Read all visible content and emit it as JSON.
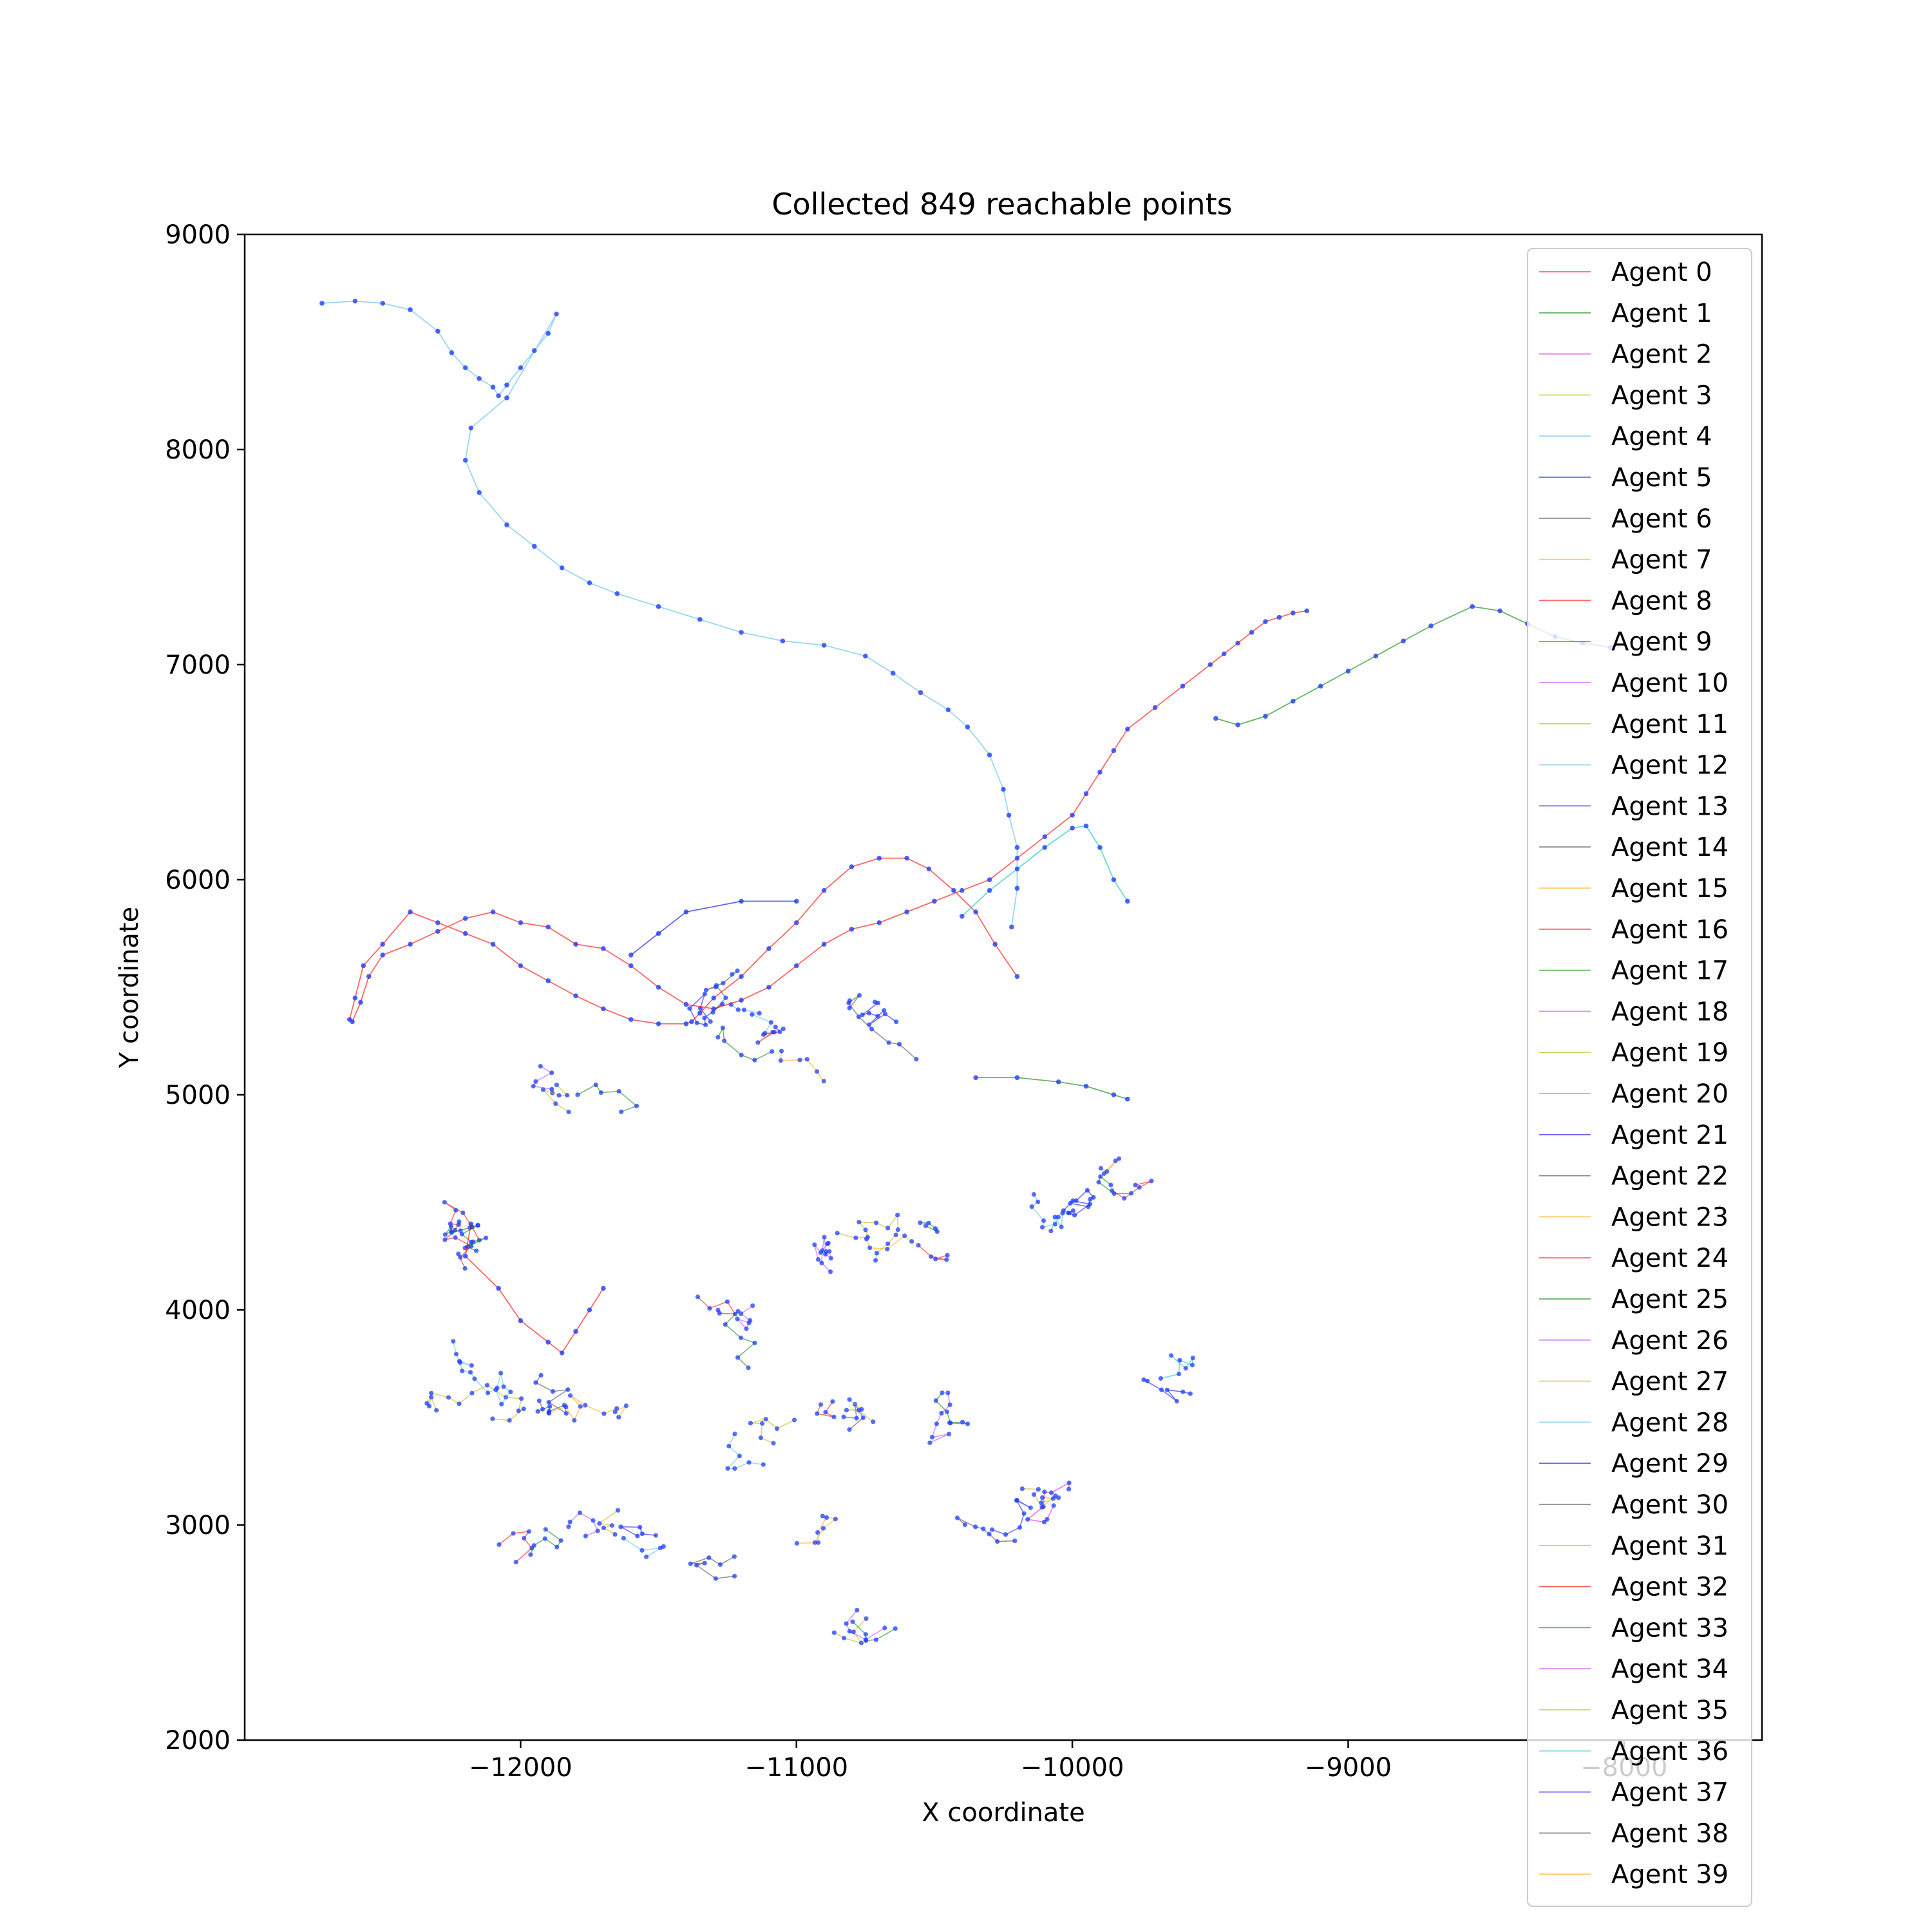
{
  "chart_data": {
    "type": "line",
    "title": "Collected 849 reachable points",
    "xlabel": "X coordinate",
    "ylabel": "Y coordinate",
    "xlim": [
      -13000,
      -7500
    ],
    "ylim": [
      2000,
      9000
    ],
    "xticks": [
      -12000,
      -11000,
      -10000,
      -9000,
      -8000
    ],
    "xtick_labels": [
      "−12000",
      "−11000",
      "−10000",
      "−9000",
      "−8000"
    ],
    "yticks": [
      2000,
      3000,
      4000,
      5000,
      6000,
      7000,
      8000,
      9000
    ],
    "ytick_labels": [
      "2000",
      "3000",
      "4000",
      "5000",
      "6000",
      "7000",
      "8000",
      "9000"
    ],
    "grid": false,
    "legend_position": "right",
    "point_color": "#1f3fff",
    "series": [
      {
        "name": "Agent 0",
        "color": "#ff0000",
        "x": [],
        "y": []
      },
      {
        "name": "Agent 1",
        "color": "#008000",
        "x": [],
        "y": []
      },
      {
        "name": "Agent 2",
        "color": "#e000e0",
        "x": [],
        "y": []
      },
      {
        "name": "Agent 3",
        "color": "#b5b500",
        "x": [],
        "y": []
      },
      {
        "name": "Agent 4",
        "color": "#55bbee",
        "x": [
          -12720,
          -12600,
          -12500,
          -12400,
          -12300,
          -12250,
          -12200,
          -12150,
          -12100,
          -12080,
          -12050,
          -12000,
          -11950,
          -11900,
          -11870,
          -12050,
          -12180,
          -12200,
          -12150,
          -12050,
          -11950,
          -11850,
          -11750,
          -11650,
          -11500,
          -11350,
          -11200,
          -11050,
          -10900,
          -10750,
          -10650,
          -10550,
          -10450,
          -10380,
          -10300,
          -10250,
          -10230,
          -10200,
          -10200,
          -10220
        ],
        "y": [
          8680,
          8690,
          8680,
          8650,
          8550,
          8450,
          8380,
          8330,
          8290,
          8250,
          8300,
          8380,
          8460,
          8540,
          8630,
          8240,
          8100,
          7950,
          7800,
          7650,
          7550,
          7450,
          7380,
          7330,
          7270,
          7210,
          7150,
          7110,
          7090,
          7040,
          6960,
          6870,
          6790,
          6710,
          6580,
          6420,
          6300,
          6150,
          5960,
          5780
        ]
      },
      {
        "name": "Agent 5",
        "color": "#0000ff",
        "x": [
          -11000,
          -11200,
          -11400,
          -11500,
          -11600
        ],
        "y": [
          5900,
          5900,
          5850,
          5750,
          5650
        ]
      },
      {
        "name": "Agent 6",
        "color": "#404040",
        "x": [],
        "y": []
      },
      {
        "name": "Agent 7",
        "color": "#ffa500",
        "x": [],
        "y": []
      },
      {
        "name": "Agent 8",
        "color": "#ff0000",
        "x": [
          -12180,
          -12200,
          -12080,
          -12000,
          -11900,
          -11850,
          -11800,
          -11750,
          -11700
        ],
        "y": [
          4400,
          4250,
          4100,
          3950,
          3850,
          3800,
          3900,
          4000,
          4100
        ]
      },
      {
        "name": "Agent 9",
        "color": "#008000",
        "x": [
          -9480,
          -9400,
          -9300,
          -9200,
          -9100,
          -9000,
          -8900,
          -8800,
          -8700,
          -8550,
          -8450,
          -8350,
          -8250,
          -8150,
          -8050
        ],
        "y": [
          6750,
          6720,
          6760,
          6830,
          6900,
          6970,
          7040,
          7110,
          7180,
          7270,
          7250,
          7190,
          7130,
          7100,
          7080
        ]
      },
      {
        "name": "Agent 10",
        "color": "#c040ff",
        "x": [],
        "y": []
      },
      {
        "name": "Agent 11",
        "color": "#b5b500",
        "x": [],
        "y": []
      },
      {
        "name": "Agent 12",
        "color": "#55bbee",
        "x": [],
        "y": []
      },
      {
        "name": "Agent 13",
        "color": "#0000ff",
        "x": [],
        "y": []
      },
      {
        "name": "Agent 14",
        "color": "#404040",
        "x": [],
        "y": []
      },
      {
        "name": "Agent 15",
        "color": "#ffa500",
        "x": [],
        "y": []
      },
      {
        "name": "Agent 16",
        "color": "#ff0000",
        "x": [
          -10200,
          -10280,
          -10350,
          -10430,
          -10520,
          -10600,
          -10700,
          -10800,
          -10900,
          -11000,
          -11100,
          -11200,
          -11300,
          -11350,
          -11380,
          -11400,
          -11500,
          -11600,
          -11700,
          -11800,
          -11900,
          -12000,
          -12100,
          -12200,
          -12300,
          -12400,
          -12500,
          -12570,
          -12600,
          -12620,
          -12610,
          -12580,
          -12550,
          -12500,
          -12400,
          -12300,
          -12200,
          -12100,
          -12000,
          -11900,
          -11800,
          -11700,
          -11600,
          -11500,
          -11400,
          -11300,
          -11200,
          -11100,
          -11000,
          -10900,
          -10800,
          -10700,
          -10600,
          -10500,
          -10400,
          -10300,
          -10200,
          -10100,
          -10000,
          -9950,
          -9900,
          -9850,
          -9800,
          -9700,
          -9600,
          -9500,
          -9450,
          -9400,
          -9350,
          -9300,
          -9250,
          -9200,
          -9150
        ],
        "y": [
          5550,
          5700,
          5850,
          5950,
          6050,
          6100,
          6100,
          6060,
          5950,
          5800,
          5680,
          5550,
          5450,
          5380,
          5340,
          5330,
          5330,
          5350,
          5400,
          5460,
          5530,
          5600,
          5700,
          5750,
          5800,
          5850,
          5700,
          5600,
          5450,
          5350,
          5340,
          5430,
          5550,
          5650,
          5700,
          5760,
          5820,
          5850,
          5800,
          5780,
          5700,
          5680,
          5600,
          5500,
          5420,
          5400,
          5440,
          5500,
          5600,
          5700,
          5770,
          5800,
          5850,
          5900,
          5950,
          6000,
          6100,
          6200,
          6300,
          6400,
          6500,
          6600,
          6700,
          6800,
          6900,
          7000,
          7050,
          7100,
          7150,
          7200,
          7220,
          7240,
          7250
        ]
      },
      {
        "name": "Agent 17",
        "color": "#008000",
        "x": [
          -10350,
          -10200,
          -10050,
          -9950,
          -9850,
          -9800
        ],
        "y": [
          5080,
          5080,
          5060,
          5040,
          5000,
          4980
        ]
      },
      {
        "name": "Agent 18",
        "color": "#c040ff",
        "x": [],
        "y": []
      },
      {
        "name": "Agent 19",
        "color": "#b5b500",
        "x": [],
        "y": []
      },
      {
        "name": "Agent 20",
        "color": "#00c0c0",
        "x": [
          -10400,
          -10300,
          -10200,
          -10100,
          -10000,
          -9950,
          -9900,
          -9850,
          -9800
        ],
        "y": [
          5830,
          5950,
          6050,
          6150,
          6240,
          6250,
          6150,
          6000,
          5900
        ]
      },
      {
        "name": "Agent 21",
        "color": "#0000ff",
        "x": [],
        "y": []
      },
      {
        "name": "Agent 22",
        "color": "#404040",
        "x": [],
        "y": []
      },
      {
        "name": "Agent 23",
        "color": "#ffa500",
        "x": [],
        "y": []
      },
      {
        "name": "Agent 24",
        "color": "#ff0000",
        "x": [],
        "y": []
      },
      {
        "name": "Agent 25",
        "color": "#008000",
        "x": [],
        "y": []
      },
      {
        "name": "Agent 26",
        "color": "#c040ff",
        "x": [],
        "y": []
      },
      {
        "name": "Agent 27",
        "color": "#b5b500",
        "x": [],
        "y": []
      },
      {
        "name": "Agent 28",
        "color": "#55bbee",
        "x": [],
        "y": []
      },
      {
        "name": "Agent 29",
        "color": "#0000ff",
        "x": [],
        "y": []
      },
      {
        "name": "Agent 30",
        "color": "#404040",
        "x": [],
        "y": []
      },
      {
        "name": "Agent 31",
        "color": "#b5b500",
        "x": [],
        "y": []
      },
      {
        "name": "Agent 32",
        "color": "#ff0000",
        "x": [],
        "y": []
      },
      {
        "name": "Agent 33",
        "color": "#008000",
        "x": [],
        "y": []
      },
      {
        "name": "Agent 34",
        "color": "#c040ff",
        "x": [],
        "y": []
      },
      {
        "name": "Agent 35",
        "color": "#b5b500",
        "x": [],
        "y": []
      },
      {
        "name": "Agent 36",
        "color": "#55bbee",
        "x": [],
        "y": []
      },
      {
        "name": "Agent 37",
        "color": "#0000ff",
        "x": [],
        "y": []
      },
      {
        "name": "Agent 38",
        "color": "#404040",
        "x": [],
        "y": []
      },
      {
        "name": "Agent 39",
        "color": "#ffa500",
        "x": [],
        "y": []
      }
    ]
  }
}
